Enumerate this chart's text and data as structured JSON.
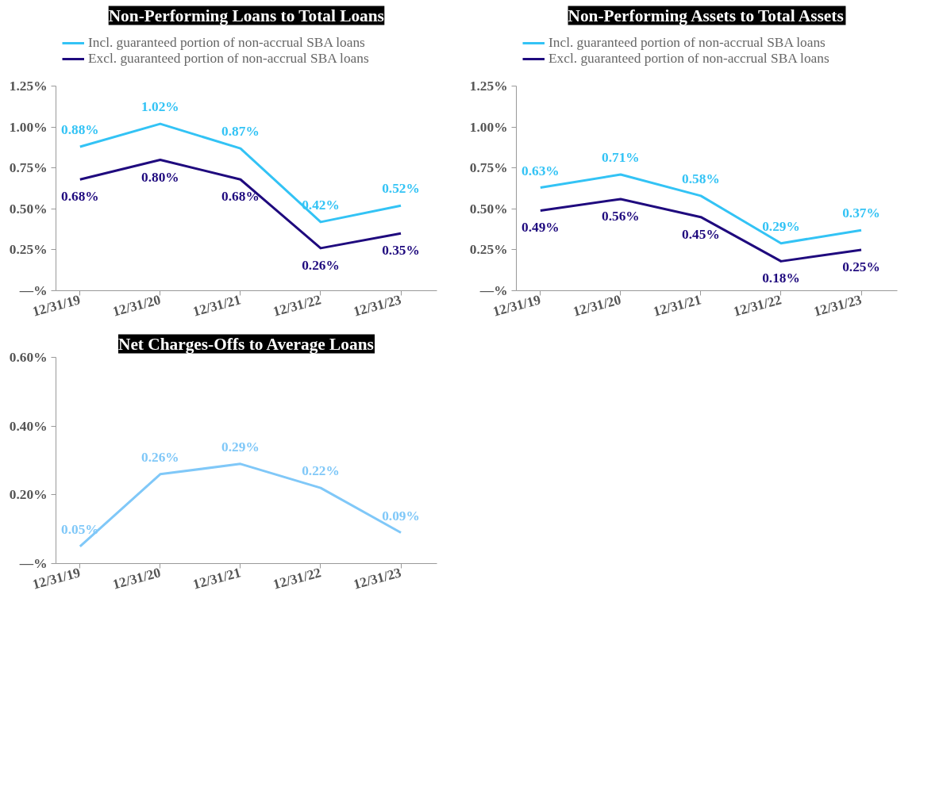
{
  "chart_data": [
    {
      "type": "line",
      "title": "Non-Performing Loans to Total Loans",
      "categories": [
        "12/31/19",
        "12/31/20",
        "12/31/21",
        "12/31/22",
        "12/31/23"
      ],
      "ylim": [
        0,
        1.25
      ],
      "yticks": [
        {
          "value": 0,
          "label": "—%"
        },
        {
          "value": 0.25,
          "label": "0.25%"
        },
        {
          "value": 0.5,
          "label": "0.50%"
        },
        {
          "value": 0.75,
          "label": "0.75%"
        },
        {
          "value": 1.0,
          "label": "1.00%"
        },
        {
          "value": 1.25,
          "label": "1.25%"
        }
      ],
      "grid": false,
      "legend": "top left",
      "marker": "none",
      "series": [
        {
          "name": "Incl. guaranteed portion of non-accrual SBA loans",
          "color": "#33c3f5",
          "values": [
            0.88,
            1.02,
            0.87,
            0.42,
            0.52
          ],
          "value_labels": [
            "0.88%",
            "1.02%",
            "0.87%",
            "0.42%",
            "0.52%"
          ]
        },
        {
          "name": "Excl. guaranteed portion of non-accrual SBA loans",
          "color": "#1f0a7e",
          "values": [
            0.68,
            0.8,
            0.68,
            0.26,
            0.35
          ],
          "value_labels": [
            "0.68%",
            "0.80%",
            "0.68%",
            "0.26%",
            "0.35%"
          ]
        }
      ]
    },
    {
      "type": "line",
      "title": "Non-Performing Assets to Total Assets",
      "categories": [
        "12/31/19",
        "12/31/20",
        "12/31/21",
        "12/31/22",
        "12/31/23"
      ],
      "ylim": [
        0,
        1.25
      ],
      "yticks": [
        {
          "value": 0,
          "label": "—%"
        },
        {
          "value": 0.25,
          "label": "0.25%"
        },
        {
          "value": 0.5,
          "label": "0.50%"
        },
        {
          "value": 0.75,
          "label": "0.75%"
        },
        {
          "value": 1.0,
          "label": "1.00%"
        },
        {
          "value": 1.25,
          "label": "1.25%"
        }
      ],
      "grid": false,
      "legend": "top left",
      "marker": "none",
      "series": [
        {
          "name": "Incl. guaranteed portion of non-accrual SBA loans",
          "color": "#33c3f5",
          "values": [
            0.63,
            0.71,
            0.58,
            0.29,
            0.37
          ],
          "value_labels": [
            "0.63%",
            "0.71%",
            "0.58%",
            "0.29%",
            "0.37%"
          ]
        },
        {
          "name": "Excl. guaranteed portion of non-accrual SBA loans",
          "color": "#1f0a7e",
          "values": [
            0.49,
            0.56,
            0.45,
            0.18,
            0.25
          ],
          "value_labels": [
            "0.49%",
            "0.56%",
            "0.45%",
            "0.18%",
            "0.25%"
          ]
        }
      ]
    },
    {
      "type": "line",
      "title": "Net Charges-Offs to Average Loans",
      "categories": [
        "12/31/19",
        "12/31/20",
        "12/31/21",
        "12/31/22",
        "12/31/23"
      ],
      "ylim": [
        0,
        0.6
      ],
      "yticks": [
        {
          "value": 0,
          "label": "—%"
        },
        {
          "value": 0.2,
          "label": "0.20%"
        },
        {
          "value": 0.4,
          "label": "0.40%"
        },
        {
          "value": 0.6,
          "label": "0.60%"
        }
      ],
      "grid": false,
      "marker": "none",
      "series": [
        {
          "color": "#80c8f8",
          "values": [
            0.05,
            0.26,
            0.29,
            0.22,
            0.09
          ],
          "value_labels": [
            "0.05%",
            "0.26%",
            "0.29%",
            "0.22%",
            "0.09%"
          ]
        }
      ]
    }
  ]
}
